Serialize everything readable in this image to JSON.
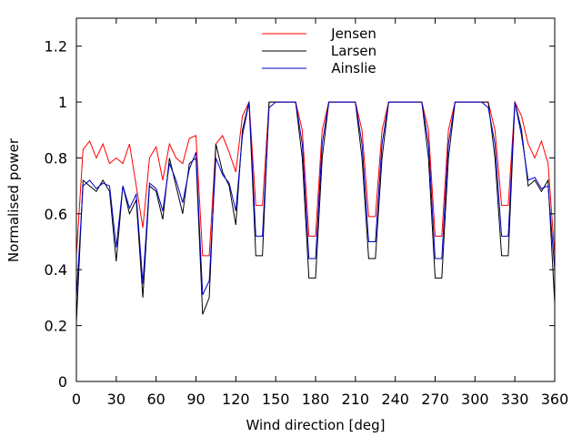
{
  "chart_data": {
    "type": "line",
    "xlabel": "Wind direction [deg]",
    "ylabel": "Normalised power",
    "xlim": [
      0,
      360
    ],
    "ylim": [
      0,
      1.3
    ],
    "xticks": [
      "0",
      "30",
      "60",
      "90",
      "120",
      "150",
      "180",
      "210",
      "240",
      "270",
      "300",
      "330",
      "360"
    ],
    "yticks": [
      "0",
      "0.2",
      "0.4",
      "0.6",
      "0.8",
      "1",
      "1.2"
    ],
    "grid": false,
    "legend_position": "top-center",
    "x": [
      0,
      5,
      10,
      15,
      20,
      25,
      30,
      35,
      40,
      45,
      50,
      55,
      60,
      65,
      70,
      75,
      80,
      85,
      90,
      95,
      100,
      105,
      110,
      115,
      120,
      125,
      130,
      135,
      140,
      145,
      150,
      155,
      160,
      165,
      170,
      175,
      180,
      185,
      190,
      195,
      200,
      205,
      210,
      215,
      220,
      225,
      230,
      235,
      240,
      245,
      250,
      255,
      260,
      265,
      270,
      275,
      280,
      285,
      290,
      295,
      300,
      305,
      310,
      315,
      320,
      325,
      330,
      335,
      340,
      345,
      350,
      355,
      360
    ],
    "series": [
      {
        "name": "Jensen",
        "color": "#ff0000",
        "values": [
          0.45,
          0.83,
          0.86,
          0.8,
          0.85,
          0.78,
          0.8,
          0.78,
          0.85,
          0.7,
          0.55,
          0.8,
          0.84,
          0.72,
          0.85,
          0.8,
          0.78,
          0.87,
          0.88,
          0.45,
          0.45,
          0.85,
          0.88,
          0.82,
          0.75,
          0.95,
          1.0,
          0.63,
          0.63,
          1.0,
          1.0,
          1.0,
          1.0,
          1.0,
          0.9,
          0.52,
          0.52,
          0.9,
          1.0,
          1.0,
          1.0,
          1.0,
          1.0,
          0.9,
          0.59,
          0.59,
          0.9,
          1.0,
          1.0,
          1.0,
          1.0,
          1.0,
          1.0,
          0.9,
          0.52,
          0.52,
          0.9,
          1.0,
          1.0,
          1.0,
          1.0,
          1.0,
          1.0,
          0.9,
          0.63,
          0.63,
          1.0,
          0.95,
          0.85,
          0.8,
          0.86,
          0.78,
          0.45
        ]
      },
      {
        "name": "Larsen",
        "color": "#000000",
        "values": [
          0.21,
          0.72,
          0.7,
          0.68,
          0.72,
          0.68,
          0.43,
          0.7,
          0.6,
          0.65,
          0.3,
          0.7,
          0.68,
          0.58,
          0.8,
          0.7,
          0.6,
          0.78,
          0.8,
          0.24,
          0.3,
          0.85,
          0.75,
          0.7,
          0.56,
          0.9,
          1.0,
          0.45,
          0.45,
          1.0,
          1.0,
          1.0,
          1.0,
          1.0,
          0.8,
          0.37,
          0.37,
          0.8,
          1.0,
          1.0,
          1.0,
          1.0,
          1.0,
          0.8,
          0.44,
          0.44,
          0.8,
          1.0,
          1.0,
          1.0,
          1.0,
          1.0,
          1.0,
          0.8,
          0.37,
          0.37,
          0.8,
          1.0,
          1.0,
          1.0,
          1.0,
          1.0,
          1.0,
          0.8,
          0.45,
          0.45,
          1.0,
          0.9,
          0.7,
          0.72,
          0.68,
          0.72,
          0.28
        ]
      },
      {
        "name": "Ainslie",
        "color": "#0000cc",
        "values": [
          0.3,
          0.7,
          0.72,
          0.69,
          0.71,
          0.7,
          0.48,
          0.7,
          0.62,
          0.67,
          0.35,
          0.71,
          0.69,
          0.61,
          0.78,
          0.72,
          0.64,
          0.76,
          0.82,
          0.31,
          0.36,
          0.8,
          0.74,
          0.71,
          0.61,
          0.88,
          1.0,
          0.52,
          0.52,
          0.98,
          1.0,
          1.0,
          1.0,
          1.0,
          0.85,
          0.44,
          0.44,
          0.85,
          1.0,
          1.0,
          1.0,
          1.0,
          1.0,
          0.85,
          0.5,
          0.5,
          0.85,
          1.0,
          1.0,
          1.0,
          1.0,
          1.0,
          1.0,
          0.85,
          0.44,
          0.44,
          0.85,
          1.0,
          1.0,
          1.0,
          1.0,
          1.0,
          0.98,
          0.85,
          0.52,
          0.52,
          1.0,
          0.88,
          0.72,
          0.73,
          0.69,
          0.7,
          0.4
        ]
      }
    ]
  }
}
